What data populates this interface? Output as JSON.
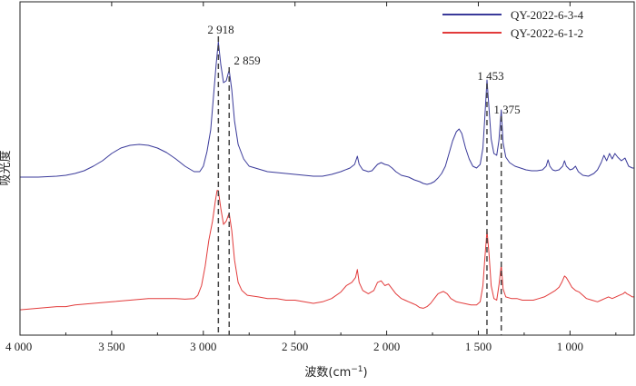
{
  "chart_data": {
    "type": "line",
    "xlabel": "波数(cm⁻¹)",
    "ylabel": "吸光度",
    "xlim": [
      4000,
      650
    ],
    "x_reversed": true,
    "x_ticks": [
      {
        "value": 4000,
        "label": "4 000"
      },
      {
        "value": 3500,
        "label": "3 500"
      },
      {
        "value": 3000,
        "label": "3 000"
      },
      {
        "value": 2500,
        "label": "2 500"
      },
      {
        "value": 2000,
        "label": "2 000"
      },
      {
        "value": 1500,
        "label": "1 500"
      },
      {
        "value": 1000,
        "label": "1 000"
      }
    ],
    "y_ticks_shown": false,
    "legend_position": "top-right",
    "peak_labels": [
      {
        "x": 2918,
        "label": "2 918"
      },
      {
        "x": 2859,
        "label": "2 859"
      },
      {
        "x": 1453,
        "label": "1 453"
      },
      {
        "x": 1375,
        "label": "1 375"
      }
    ],
    "series": [
      {
        "name": "QY-2022-6-3-4",
        "color": "#3a3a9a",
        "points": [
          [
            4000,
            0.24
          ],
          [
            3900,
            0.24
          ],
          [
            3800,
            0.245
          ],
          [
            3750,
            0.25
          ],
          [
            3700,
            0.26
          ],
          [
            3650,
            0.275
          ],
          [
            3600,
            0.3
          ],
          [
            3550,
            0.33
          ],
          [
            3500,
            0.37
          ],
          [
            3450,
            0.4
          ],
          [
            3400,
            0.415
          ],
          [
            3350,
            0.42
          ],
          [
            3300,
            0.415
          ],
          [
            3250,
            0.4
          ],
          [
            3200,
            0.375
          ],
          [
            3150,
            0.34
          ],
          [
            3100,
            0.3
          ],
          [
            3050,
            0.27
          ],
          [
            3020,
            0.27
          ],
          [
            3000,
            0.3
          ],
          [
            2980,
            0.38
          ],
          [
            2960,
            0.5
          ],
          [
            2945,
            0.68
          ],
          [
            2930,
            0.86
          ],
          [
            2918,
            0.985
          ],
          [
            2905,
            0.86
          ],
          [
            2890,
            0.76
          ],
          [
            2875,
            0.77
          ],
          [
            2859,
            0.83
          ],
          [
            2845,
            0.72
          ],
          [
            2830,
            0.55
          ],
          [
            2810,
            0.42
          ],
          [
            2780,
            0.34
          ],
          [
            2750,
            0.3
          ],
          [
            2700,
            0.285
          ],
          [
            2650,
            0.27
          ],
          [
            2600,
            0.265
          ],
          [
            2550,
            0.26
          ],
          [
            2500,
            0.255
          ],
          [
            2450,
            0.25
          ],
          [
            2400,
            0.245
          ],
          [
            2350,
            0.245
          ],
          [
            2300,
            0.255
          ],
          [
            2250,
            0.27
          ],
          [
            2200,
            0.29
          ],
          [
            2175,
            0.31
          ],
          [
            2160,
            0.355
          ],
          [
            2150,
            0.31
          ],
          [
            2130,
            0.28
          ],
          [
            2100,
            0.27
          ],
          [
            2080,
            0.275
          ],
          [
            2050,
            0.31
          ],
          [
            2030,
            0.32
          ],
          [
            2010,
            0.31
          ],
          [
            1990,
            0.305
          ],
          [
            1970,
            0.29
          ],
          [
            1950,
            0.27
          ],
          [
            1920,
            0.25
          ],
          [
            1880,
            0.24
          ],
          [
            1850,
            0.225
          ],
          [
            1820,
            0.215
          ],
          [
            1800,
            0.205
          ],
          [
            1780,
            0.2
          ],
          [
            1760,
            0.205
          ],
          [
            1740,
            0.215
          ],
          [
            1720,
            0.235
          ],
          [
            1700,
            0.26
          ],
          [
            1680,
            0.3
          ],
          [
            1660,
            0.37
          ],
          [
            1640,
            0.44
          ],
          [
            1620,
            0.49
          ],
          [
            1605,
            0.505
          ],
          [
            1590,
            0.48
          ],
          [
            1570,
            0.4
          ],
          [
            1550,
            0.34
          ],
          [
            1530,
            0.3
          ],
          [
            1510,
            0.29
          ],
          [
            1490,
            0.31
          ],
          [
            1475,
            0.4
          ],
          [
            1465,
            0.56
          ],
          [
            1453,
            0.775
          ],
          [
            1442,
            0.62
          ],
          [
            1430,
            0.45
          ],
          [
            1415,
            0.37
          ],
          [
            1400,
            0.36
          ],
          [
            1388,
            0.44
          ],
          [
            1375,
            0.61
          ],
          [
            1365,
            0.43
          ],
          [
            1350,
            0.35
          ],
          [
            1330,
            0.32
          ],
          [
            1300,
            0.3
          ],
          [
            1270,
            0.29
          ],
          [
            1240,
            0.28
          ],
          [
            1210,
            0.275
          ],
          [
            1180,
            0.275
          ],
          [
            1150,
            0.28
          ],
          [
            1130,
            0.3
          ],
          [
            1120,
            0.335
          ],
          [
            1110,
            0.3
          ],
          [
            1095,
            0.28
          ],
          [
            1080,
            0.275
          ],
          [
            1060,
            0.28
          ],
          [
            1040,
            0.3
          ],
          [
            1030,
            0.33
          ],
          [
            1020,
            0.3
          ],
          [
            1000,
            0.28
          ],
          [
            985,
            0.285
          ],
          [
            970,
            0.3
          ],
          [
            955,
            0.27
          ],
          [
            930,
            0.25
          ],
          [
            900,
            0.245
          ],
          [
            870,
            0.26
          ],
          [
            850,
            0.28
          ],
          [
            830,
            0.32
          ],
          [
            815,
            0.36
          ],
          [
            800,
            0.33
          ],
          [
            785,
            0.37
          ],
          [
            770,
            0.34
          ],
          [
            755,
            0.37
          ],
          [
            740,
            0.35
          ],
          [
            720,
            0.33
          ],
          [
            700,
            0.345
          ],
          [
            680,
            0.3
          ],
          [
            660,
            0.29
          ],
          [
            650,
            0.29
          ]
        ]
      },
      {
        "name": "QY-2022-6-1-2",
        "color": "#e23b3b",
        "points": [
          [
            4000,
            0.025
          ],
          [
            3900,
            0.03
          ],
          [
            3800,
            0.035
          ],
          [
            3750,
            0.035
          ],
          [
            3700,
            0.04
          ],
          [
            3600,
            0.045
          ],
          [
            3500,
            0.05
          ],
          [
            3400,
            0.055
          ],
          [
            3300,
            0.06
          ],
          [
            3200,
            0.06
          ],
          [
            3150,
            0.06
          ],
          [
            3100,
            0.058
          ],
          [
            3050,
            0.06
          ],
          [
            3030,
            0.07
          ],
          [
            3010,
            0.1
          ],
          [
            2990,
            0.16
          ],
          [
            2970,
            0.24
          ],
          [
            2950,
            0.3
          ],
          [
            2935,
            0.36
          ],
          [
            2925,
            0.395
          ],
          [
            2918,
            0.395
          ],
          [
            2905,
            0.34
          ],
          [
            2890,
            0.29
          ],
          [
            2875,
            0.3
          ],
          [
            2859,
            0.325
          ],
          [
            2845,
            0.27
          ],
          [
            2830,
            0.18
          ],
          [
            2810,
            0.11
          ],
          [
            2790,
            0.085
          ],
          [
            2760,
            0.07
          ],
          [
            2700,
            0.065
          ],
          [
            2650,
            0.06
          ],
          [
            2600,
            0.06
          ],
          [
            2550,
            0.055
          ],
          [
            2500,
            0.055
          ],
          [
            2450,
            0.05
          ],
          [
            2400,
            0.045
          ],
          [
            2350,
            0.05
          ],
          [
            2300,
            0.06
          ],
          [
            2250,
            0.08
          ],
          [
            2220,
            0.1
          ],
          [
            2190,
            0.11
          ],
          [
            2170,
            0.125
          ],
          [
            2160,
            0.15
          ],
          [
            2150,
            0.11
          ],
          [
            2130,
            0.085
          ],
          [
            2100,
            0.075
          ],
          [
            2070,
            0.085
          ],
          [
            2050,
            0.11
          ],
          [
            2030,
            0.115
          ],
          [
            2010,
            0.1
          ],
          [
            1990,
            0.105
          ],
          [
            1970,
            0.09
          ],
          [
            1950,
            0.075
          ],
          [
            1920,
            0.06
          ],
          [
            1900,
            0.055
          ],
          [
            1880,
            0.05
          ],
          [
            1860,
            0.045
          ],
          [
            1840,
            0.04
          ],
          [
            1820,
            0.032
          ],
          [
            1800,
            0.03
          ],
          [
            1780,
            0.035
          ],
          [
            1760,
            0.045
          ],
          [
            1740,
            0.06
          ],
          [
            1720,
            0.075
          ],
          [
            1700,
            0.08
          ],
          [
            1690,
            0.082
          ],
          [
            1670,
            0.075
          ],
          [
            1650,
            0.06
          ],
          [
            1620,
            0.05
          ],
          [
            1580,
            0.045
          ],
          [
            1540,
            0.04
          ],
          [
            1510,
            0.04
          ],
          [
            1490,
            0.05
          ],
          [
            1475,
            0.1
          ],
          [
            1465,
            0.18
          ],
          [
            1453,
            0.27
          ],
          [
            1442,
            0.2
          ],
          [
            1430,
            0.1
          ],
          [
            1415,
            0.06
          ],
          [
            1400,
            0.055
          ],
          [
            1388,
            0.1
          ],
          [
            1375,
            0.165
          ],
          [
            1365,
            0.09
          ],
          [
            1350,
            0.065
          ],
          [
            1320,
            0.06
          ],
          [
            1290,
            0.06
          ],
          [
            1260,
            0.055
          ],
          [
            1230,
            0.055
          ],
          [
            1200,
            0.055
          ],
          [
            1170,
            0.06
          ],
          [
            1140,
            0.065
          ],
          [
            1110,
            0.075
          ],
          [
            1080,
            0.085
          ],
          [
            1060,
            0.095
          ],
          [
            1045,
            0.11
          ],
          [
            1030,
            0.13
          ],
          [
            1020,
            0.125
          ],
          [
            1005,
            0.11
          ],
          [
            990,
            0.095
          ],
          [
            970,
            0.085
          ],
          [
            950,
            0.08
          ],
          [
            930,
            0.07
          ],
          [
            910,
            0.06
          ],
          [
            880,
            0.055
          ],
          [
            850,
            0.05
          ],
          [
            830,
            0.055
          ],
          [
            810,
            0.06
          ],
          [
            790,
            0.065
          ],
          [
            770,
            0.06
          ],
          [
            750,
            0.065
          ],
          [
            730,
            0.07
          ],
          [
            710,
            0.075
          ],
          [
            700,
            0.08
          ],
          [
            690,
            0.075
          ],
          [
            675,
            0.07
          ],
          [
            660,
            0.065
          ],
          [
            650,
            0.065
          ]
        ]
      }
    ]
  }
}
